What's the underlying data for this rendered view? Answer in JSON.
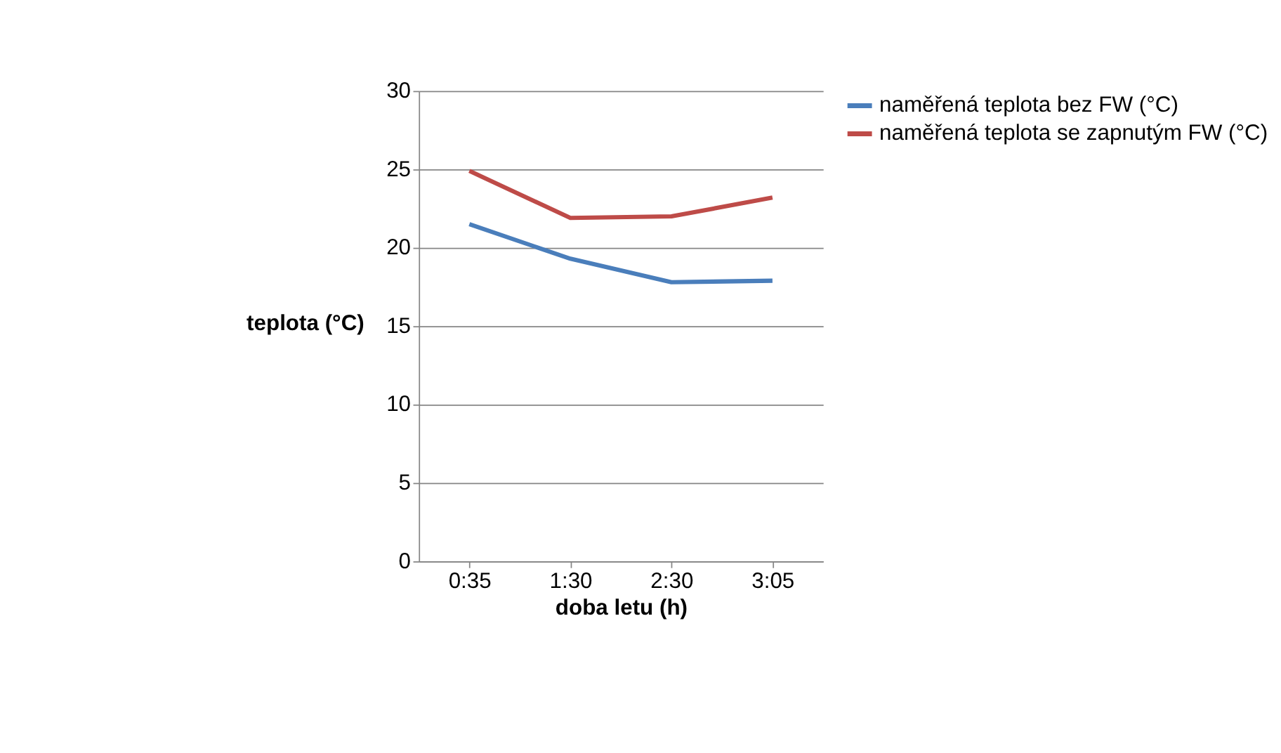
{
  "chart_data": {
    "type": "line",
    "xlabel": "doba letu (h)",
    "ylabel": "teplota (°C)",
    "categories": [
      "0:35",
      "1:30",
      "2:30",
      "3:05"
    ],
    "series": [
      {
        "name": "naměřená teplota bez FW (°C)",
        "color": "#4a7ebb",
        "values": [
          21.5,
          19.3,
          17.8,
          17.9
        ]
      },
      {
        "name": " naměřená teplota se zapnutým FW (°C)",
        "color": "#be4b48",
        "values": [
          24.9,
          21.9,
          22.0,
          23.2
        ]
      }
    ],
    "ylim": [
      0,
      30
    ],
    "yticks": [
      0,
      5,
      10,
      15,
      20,
      25,
      30
    ],
    "grid": "y",
    "legend": "right",
    "marker": "none",
    "line_style": "solid"
  }
}
